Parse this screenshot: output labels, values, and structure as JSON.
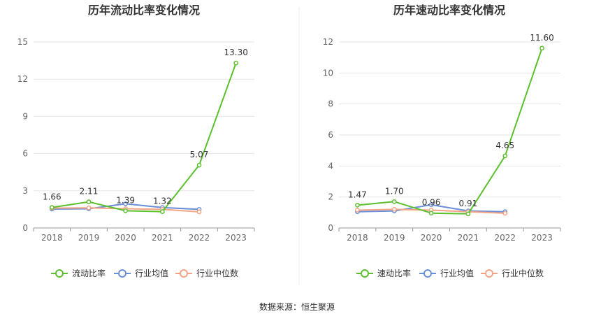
{
  "source": "数据来源：恒生聚源",
  "colors": {
    "main": "#5cc02e",
    "avg": "#6a8fd8",
    "median": "#f4a384",
    "grid": "#e6e6e6",
    "axis": "#999999",
    "divider": "#eeeeee"
  },
  "chart_data": [
    {
      "type": "line",
      "title": "历年流动比率变化情况",
      "categories": [
        "2018",
        "2019",
        "2020",
        "2021",
        "2022",
        "2023"
      ],
      "ylim": [
        0,
        15
      ],
      "yticks": [
        0,
        3,
        6,
        9,
        12,
        15
      ],
      "series": [
        {
          "key": "main",
          "name": "流动比率",
          "values": [
            1.66,
            2.11,
            1.39,
            1.32,
            5.07,
            13.3
          ],
          "labels": [
            "1.66",
            "2.11",
            "1.39",
            "1.32",
            "5.07",
            "13.30"
          ]
        },
        {
          "key": "avg",
          "name": "行业均值",
          "values": [
            1.52,
            1.55,
            1.95,
            1.65,
            1.5,
            null
          ]
        },
        {
          "key": "median",
          "name": "行业中位数",
          "values": [
            1.6,
            1.62,
            1.55,
            1.5,
            1.3,
            null
          ]
        }
      ]
    },
    {
      "type": "line",
      "title": "历年速动比率变化情况",
      "categories": [
        "2018",
        "2019",
        "2020",
        "2021",
        "2022",
        "2023"
      ],
      "ylim": [
        0,
        12
      ],
      "yticks": [
        0,
        2,
        4,
        6,
        8,
        10,
        12
      ],
      "series": [
        {
          "key": "main",
          "name": "速动比率",
          "values": [
            1.47,
            1.7,
            0.96,
            0.91,
            4.65,
            11.6
          ],
          "labels": [
            "1.47",
            "1.70",
            "0.96",
            "0.91",
            "4.65",
            "11.60"
          ]
        },
        {
          "key": "avg",
          "name": "行业均值",
          "values": [
            1.05,
            1.1,
            1.5,
            1.1,
            1.05,
            null
          ]
        },
        {
          "key": "median",
          "name": "行业中位数",
          "values": [
            1.15,
            1.2,
            1.15,
            1.05,
            0.95,
            null
          ]
        }
      ]
    }
  ]
}
